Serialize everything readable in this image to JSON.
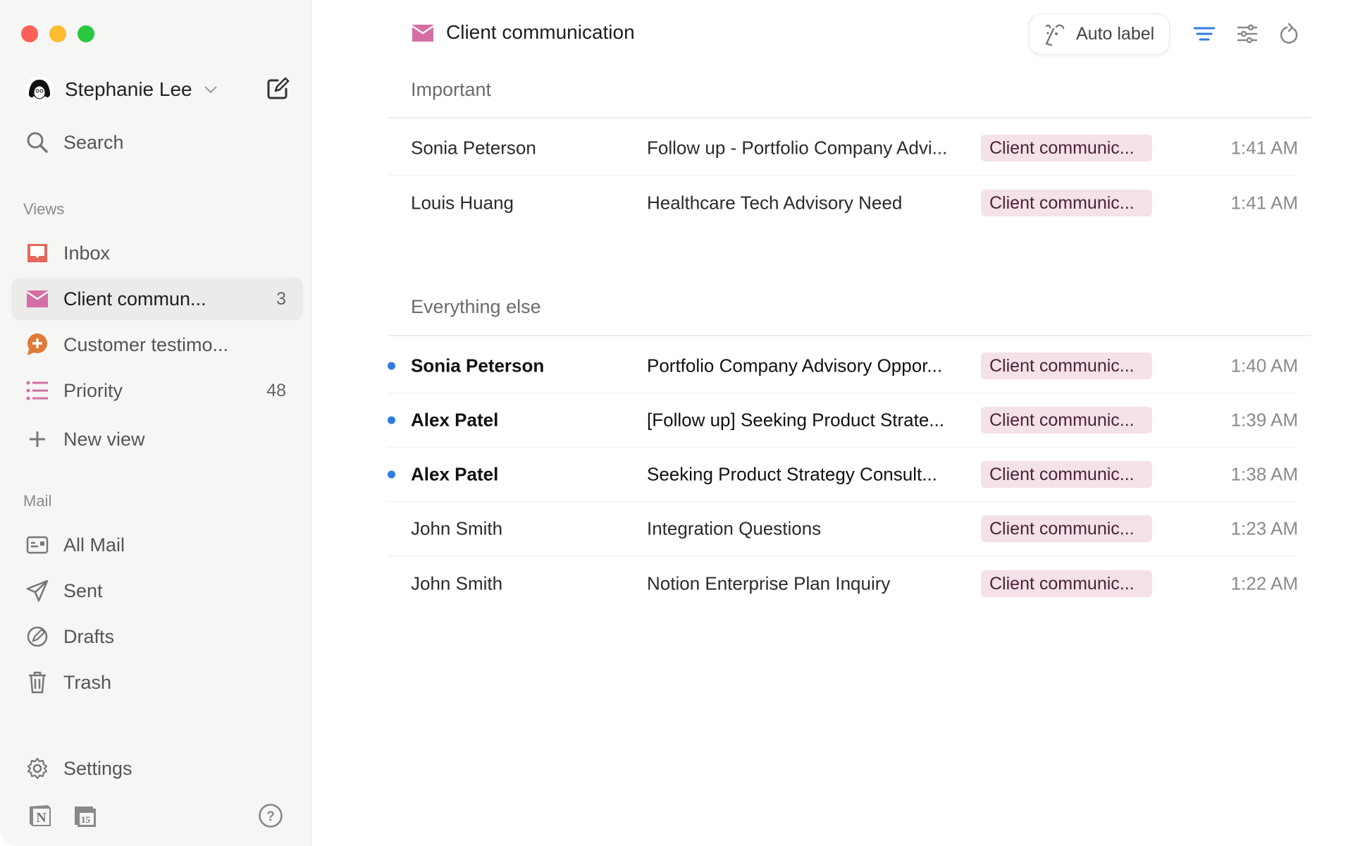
{
  "sidebar": {
    "account_name": "Stephanie Lee",
    "search_label": "Search",
    "views_label": "Views",
    "views": [
      {
        "label": "Inbox",
        "icon": "inbox-icon",
        "color": "#e5675a"
      },
      {
        "label": "Client commun...",
        "count": "3",
        "icon": "envelope-icon",
        "color": "#d46ea5",
        "active": true
      },
      {
        "label": "Customer testimo...",
        "icon": "chat-plus-icon",
        "color": "#e07a35"
      },
      {
        "label": "Priority",
        "count": "48",
        "icon": "list-icon",
        "color": "#d46ea5"
      },
      {
        "label": "New view",
        "icon": "plus-icon"
      }
    ],
    "mail_label": "Mail",
    "mail": [
      {
        "label": "All Mail",
        "icon": "all-mail-icon"
      },
      {
        "label": "Sent",
        "icon": "send-icon"
      },
      {
        "label": "Drafts",
        "icon": "drafts-icon"
      },
      {
        "label": "Trash",
        "icon": "trash-icon"
      }
    ],
    "settings_label": "Settings",
    "calendar_day": "15"
  },
  "header": {
    "title": "Client communication",
    "auto_label": "Auto label",
    "accent": "#2f7de1"
  },
  "groups": [
    {
      "title": "Important",
      "rows": [
        {
          "sender": "Sonia Peterson",
          "subject": "Follow up - Portfolio Company Advi...",
          "tag": "Client communic...",
          "time": "1:41 AM",
          "unread": false
        },
        {
          "sender": "Louis Huang",
          "subject": "Healthcare Tech Advisory Need",
          "tag": "Client communic...",
          "time": "1:41 AM",
          "unread": false
        }
      ]
    },
    {
      "title": "Everything else",
      "rows": [
        {
          "sender": "Sonia Peterson",
          "subject": "Portfolio Company Advisory Oppor...",
          "tag": "Client communic...",
          "time": "1:40 AM",
          "unread": true
        },
        {
          "sender": "Alex Patel",
          "subject": "[Follow up] Seeking Product Strate...",
          "tag": "Client communic...",
          "time": "1:39 AM",
          "unread": true
        },
        {
          "sender": "Alex Patel",
          "subject": "Seeking Product Strategy Consult...",
          "tag": "Client communic...",
          "time": "1:38 AM",
          "unread": true
        },
        {
          "sender": "John Smith",
          "subject": "Integration Questions",
          "tag": "Client communic...",
          "time": "1:23 AM",
          "unread": false
        },
        {
          "sender": "John Smith",
          "subject": "Notion Enterprise Plan Inquiry",
          "tag": "Client communic...",
          "time": "1:22 AM",
          "unread": false
        }
      ]
    }
  ]
}
